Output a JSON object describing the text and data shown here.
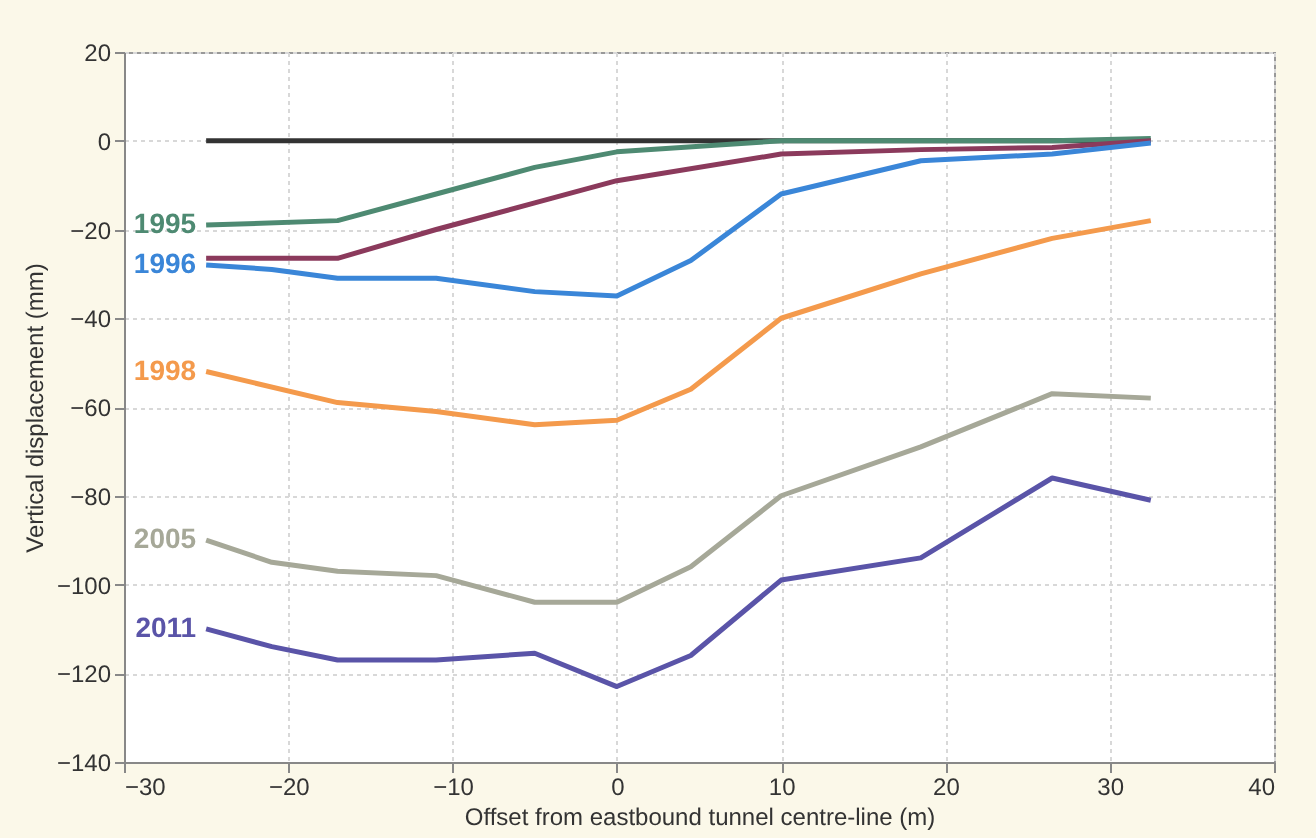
{
  "chart_data": {
    "type": "line",
    "xlabel": "Offset from eastbound tunnel centre-line (m)",
    "ylabel": "Vertical displacement (mm)",
    "xlim": [
      -30,
      40
    ],
    "xticks": [
      -30,
      -20,
      -10,
      0,
      10,
      20,
      30,
      40
    ],
    "ylim": [
      -140,
      20
    ],
    "yticks": [
      -140,
      -120,
      -100,
      -80,
      -60,
      -40,
      -20,
      0,
      20
    ],
    "grid": true,
    "legend": false,
    "marker": "none",
    "line_style": "solid",
    "series": [
      {
        "color": "#333333",
        "x": [
          -25,
          32.5
        ],
        "values": [
          0,
          0
        ]
      },
      {
        "name": "1995",
        "color": "#4e8a72",
        "x": [
          -25,
          -17,
          -11,
          -5,
          0,
          10,
          18.5,
          26.5,
          32.5
        ],
        "values": [
          -19,
          -18,
          -12,
          -6,
          -2.5,
          0,
          0,
          0,
          0.5
        ]
      },
      {
        "color": "#8b3a5c",
        "x": [
          -25,
          -17,
          -11,
          -5,
          0,
          10,
          18.5,
          26.5,
          32.5
        ],
        "values": [
          -26.5,
          -26.5,
          -20,
          -14,
          -9,
          -3,
          -2,
          -1.5,
          0
        ]
      },
      {
        "name": "1996",
        "color": "#3a86d8",
        "x": [
          -25,
          -21,
          -17,
          -11,
          -5,
          0,
          4.5,
          10,
          18.5,
          26.5,
          32.5
        ],
        "values": [
          -28,
          -29,
          -31,
          -31,
          -34,
          -35,
          -27,
          -12,
          -4.5,
          -3,
          -0.5
        ]
      },
      {
        "name": "1998",
        "color": "#f49a4c",
        "x": [
          -25,
          -17,
          -11,
          -5,
          0,
          4.5,
          10,
          18.5,
          26.5,
          32.5
        ],
        "values": [
          -52,
          -59,
          -61,
          -64,
          -63,
          -56,
          -40,
          -30,
          -22,
          -18
        ]
      },
      {
        "name": "2005",
        "color": "#a6a898",
        "x": [
          -25,
          -21,
          -17,
          -11,
          -5,
          0,
          4.5,
          10,
          18.5,
          26.5,
          32.5
        ],
        "values": [
          -90,
          -95,
          -97,
          -98,
          -104,
          -104,
          -96,
          -80,
          -69,
          -57,
          -58
        ]
      },
      {
        "name": "2011",
        "color": "#5a54a8",
        "x": [
          -25,
          -21,
          -17,
          -11,
          -5,
          0,
          4.5,
          10,
          18.5,
          26.5,
          32.5
        ],
        "values": [
          -110,
          -114,
          -117,
          -117,
          -115.5,
          -123,
          -116,
          -99,
          -94,
          -76,
          -81
        ]
      }
    ]
  }
}
